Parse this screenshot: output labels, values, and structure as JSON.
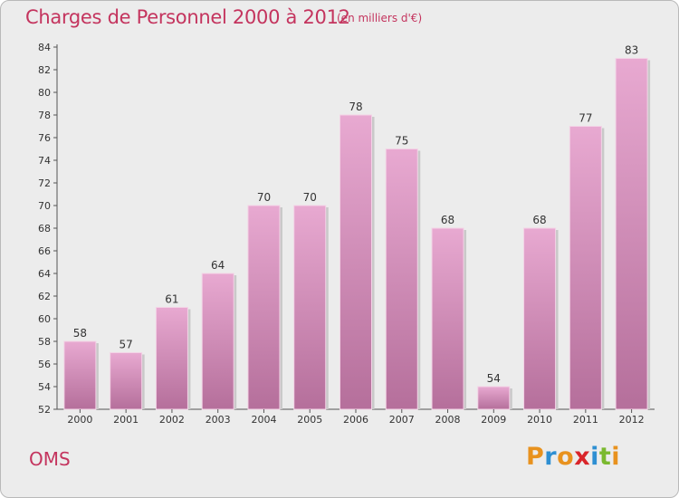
{
  "header": {
    "title": "Charges de Personnel 2000 à 2012",
    "subtitle": "(en milliers d'€)"
  },
  "footer": {
    "city": "OMS",
    "logo_text": "Proxiti"
  },
  "colors": {
    "title": "#c4345e",
    "bar_top": "#e8a9d1",
    "bar_bottom": "#b56f9b",
    "background": "#ececec",
    "logo_letters": [
      "#e8921e",
      "#2e8fd2",
      "#e8921e",
      "#d9252a",
      "#2e8fd2",
      "#7bb92f",
      "#e8921e"
    ]
  },
  "chart_data": {
    "type": "bar",
    "categories": [
      "2000",
      "2001",
      "2002",
      "2003",
      "2004",
      "2005",
      "2006",
      "2007",
      "2008",
      "2009",
      "2010",
      "2011",
      "2012"
    ],
    "values": [
      58,
      57,
      61,
      64,
      70,
      70,
      78,
      75,
      68,
      54,
      68,
      77,
      83
    ],
    "title": "Charges de Personnel 2000 à 2012",
    "subtitle": "(en milliers d'€)",
    "ylim": [
      52,
      84
    ],
    "yticks": [
      52,
      54,
      56,
      58,
      60,
      62,
      64,
      66,
      68,
      70,
      72,
      74,
      76,
      78,
      80,
      82,
      84
    ],
    "grid": false,
    "data_labels": true
  }
}
